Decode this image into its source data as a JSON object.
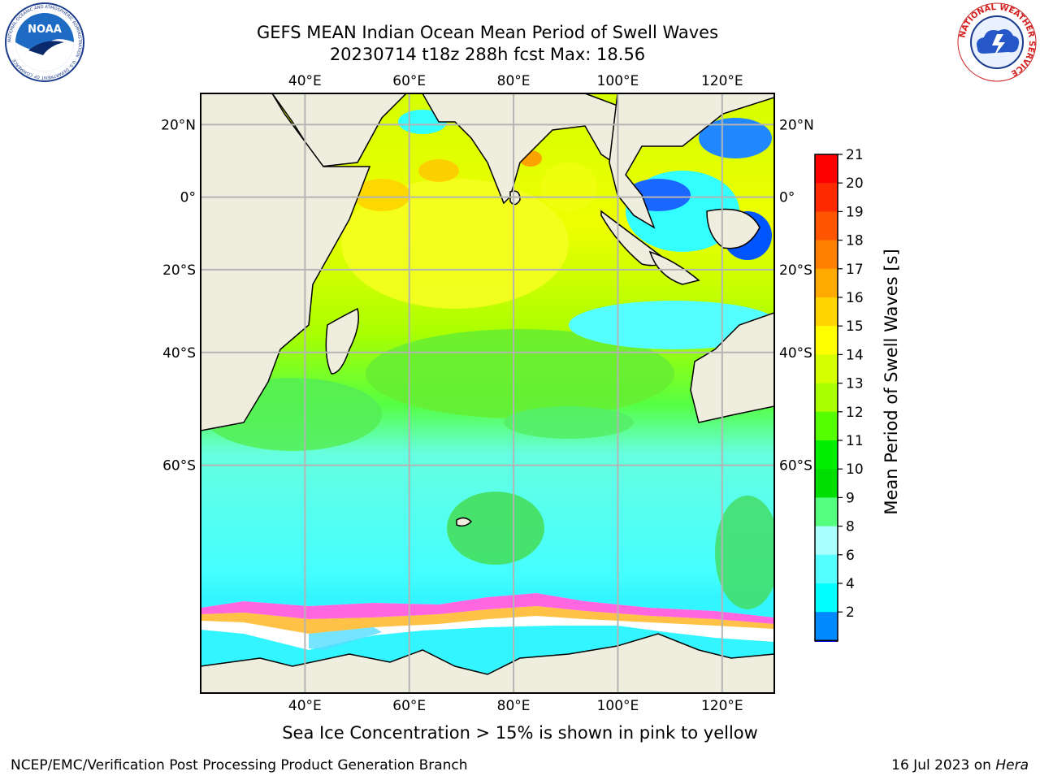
{
  "header": {
    "title_line1": "GEFS MEAN Indian Ocean Mean Period of Swell Waves",
    "title_line2": "20230714 t18z 288h fcst   Max: 18.56"
  },
  "logos": {
    "left": {
      "name": "noaa-logo",
      "text": "NOAA",
      "ring_text": "NATIONAL OCEANIC AND ATMOSPHERIC ADMINISTRATION · U.S. DEPARTMENT OF COMMERCE"
    },
    "right": {
      "name": "nws-logo",
      "ring_text": "NATIONAL WEATHER SERVICE"
    }
  },
  "map": {
    "lon_ticks": [
      "40°E",
      "60°E",
      "80°E",
      "100°E",
      "120°E"
    ],
    "lat_ticks": [
      "20°N",
      "0°",
      "20°S",
      "40°S",
      "60°S"
    ],
    "lon_values": [
      40,
      60,
      80,
      100,
      120
    ],
    "lat_values": [
      20,
      0,
      -20,
      -40,
      -60
    ],
    "extent": {
      "lon": [
        20,
        130
      ],
      "lat": [
        -80,
        28
      ]
    },
    "colors": {
      "land": "#efedde",
      "ice": "#ffffff",
      "grid": "#b4b4b4"
    }
  },
  "colorbar": {
    "label": "Mean Period of Swell Waves [s]",
    "ticks": [
      "21",
      "20",
      "19",
      "18",
      "17",
      "16",
      "15",
      "14",
      "13",
      "12",
      "11",
      "10",
      "9",
      "8",
      "6",
      "4",
      "2"
    ],
    "colors_top_to_bottom": [
      "#ff0000",
      "#ff2a00",
      "#ff5500",
      "#ff8000",
      "#ffaa00",
      "#ffd400",
      "#ffff00",
      "#d5ff00",
      "#aaff00",
      "#55ff00",
      "#00ee00",
      "#00dd00",
      "#55ff7f",
      "#aaffff",
      "#55ffff",
      "#00ffff",
      "#0088ff"
    ],
    "under_color": "#0000ff"
  },
  "note": "Sea Ice Concentration > 15% is shown in pink to yellow",
  "footer": {
    "left": "NCEP/EMC/Verification Post Processing Product Generation Branch",
    "right_date": "16 Jul 2023 on ",
    "right_host": "Hera"
  }
}
